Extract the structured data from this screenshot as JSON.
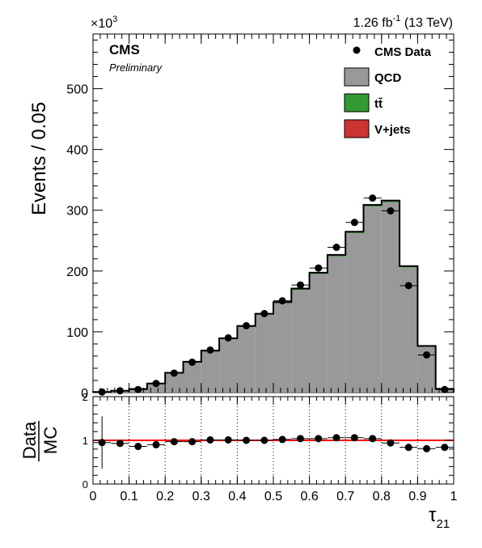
{
  "chart_data": {
    "type": "bar",
    "style": "stacked-histogram-with-ratio",
    "header_left": "CMS",
    "header_sublabel": "Preliminary",
    "lumi_label": "1.26 fb",
    "lumi_superscript": "-1",
    "lumi_energy": " (13 TeV)",
    "y_exponent_base": "×10",
    "y_exponent_power": "3",
    "ylabel": "Events / 0.05",
    "xlabel_symbol": "τ",
    "xlabel_subscript": "21",
    "ratio_ylabel_top": "Data",
    "ratio_ylabel_bottom": "MC",
    "xlim": [
      0,
      1
    ],
    "ylim": [
      0,
      590
    ],
    "ratio_ylim": [
      0,
      2
    ],
    "yticks": [
      0,
      100,
      200,
      300,
      400,
      500
    ],
    "ratio_yticks": [
      0,
      1,
      2
    ],
    "xticks": [
      0,
      0.1,
      0.2,
      0.3,
      0.4,
      0.5,
      0.6,
      0.7,
      0.8,
      0.9,
      1
    ],
    "bin_edges": [
      0,
      0.05,
      0.1,
      0.15,
      0.2,
      0.25,
      0.3,
      0.35,
      0.4,
      0.45,
      0.5,
      0.55,
      0.6,
      0.65,
      0.7,
      0.75,
      0.8,
      0.85,
      0.9,
      0.95,
      1.0
    ],
    "series": [
      {
        "name": "QCD",
        "color": "#999999",
        "values": [
          1,
          3,
          6,
          15,
          32,
          50,
          68,
          88,
          108,
          128,
          147,
          169,
          195,
          224,
          262,
          306,
          313,
          206,
          76,
          6
        ]
      },
      {
        "name": "tt̄",
        "color": "#339933",
        "values": [
          0,
          0,
          0,
          0,
          0.4,
          0.5,
          0.6,
          0.8,
          0.9,
          1,
          1.1,
          1.2,
          1.3,
          1.4,
          1.5,
          1.6,
          1.6,
          1.2,
          0.5,
          0.1
        ]
      },
      {
        "name": "V+jets",
        "color": "#cc3333",
        "values": [
          0,
          0,
          0,
          0,
          0.2,
          0.3,
          0.4,
          0.5,
          0.6,
          0.7,
          0.8,
          0.9,
          1,
          1.1,
          1.2,
          1.3,
          1.3,
          0.9,
          0.3,
          0
        ]
      }
    ],
    "data_series": {
      "name": "CMS Data",
      "x": [
        0.025,
        0.075,
        0.125,
        0.175,
        0.225,
        0.275,
        0.325,
        0.375,
        0.425,
        0.475,
        0.525,
        0.575,
        0.625,
        0.675,
        0.725,
        0.775,
        0.825,
        0.875,
        0.925,
        0.975
      ],
      "values": [
        1,
        3,
        5,
        15,
        32,
        50,
        70,
        90,
        110,
        130,
        151,
        177,
        205,
        239,
        280,
        320,
        299,
        176,
        62,
        5
      ]
    },
    "ratio": {
      "x": [
        0.025,
        0.075,
        0.125,
        0.175,
        0.225,
        0.275,
        0.325,
        0.375,
        0.425,
        0.475,
        0.525,
        0.575,
        0.625,
        0.675,
        0.725,
        0.775,
        0.825,
        0.875,
        0.925,
        0.975
      ],
      "values": [
        0.95,
        0.93,
        0.86,
        0.9,
        0.97,
        0.97,
        1.01,
        1.01,
        1.0,
        1.0,
        1.02,
        1.04,
        1.04,
        1.06,
        1.06,
        1.04,
        0.94,
        0.84,
        0.81,
        0.84
      ],
      "errors": [
        0.6,
        0.05,
        0.04,
        0.02,
        0.01,
        0.01,
        0.01,
        0.01,
        0.01,
        0.01,
        0.01,
        0.01,
        0.01,
        0.01,
        0.01,
        0.01,
        0.01,
        0.01,
        0.02,
        0.05
      ],
      "reference_line": 1,
      "reference_color": "#ff0000"
    },
    "legend": [
      {
        "label": "CMS Data",
        "kind": "marker"
      },
      {
        "label": "QCD",
        "kind": "box",
        "color": "#999999"
      },
      {
        "label": "tt̄",
        "kind": "box",
        "color": "#339933"
      },
      {
        "label": "V+jets",
        "kind": "box",
        "color": "#cc3333"
      }
    ],
    "legend_position": "top-right",
    "ratio_grid": "vertical dotted"
  }
}
